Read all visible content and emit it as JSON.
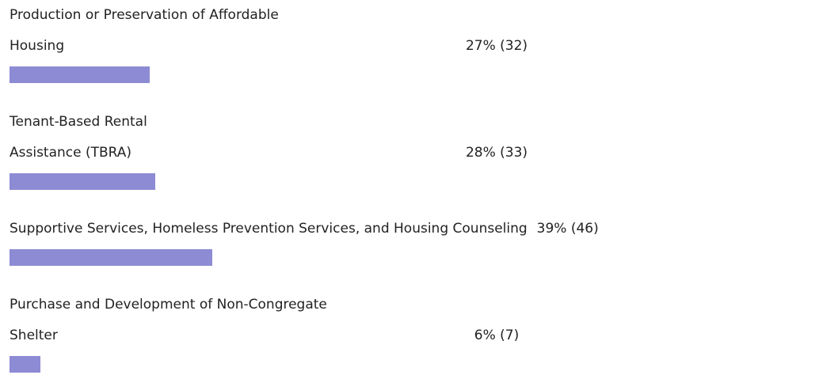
{
  "chart_data": {
    "type": "bar",
    "orientation": "horizontal",
    "categories": [
      "Production or Preservation of Affordable Housing",
      "Tenant-Based Rental Assistance (TBRA)",
      "Supportive Services, Homeless Prevention Services, and Housing Counseling",
      "Purchase and Development of Non-Congregate Shelter"
    ],
    "values": [
      27,
      28,
      39,
      6
    ],
    "value_labels": [
      "27% (32)",
      "28% (33)",
      "39% (46)",
      "6% (7)"
    ],
    "xlim": [
      0,
      100
    ],
    "color": "#8d8bd4"
  }
}
